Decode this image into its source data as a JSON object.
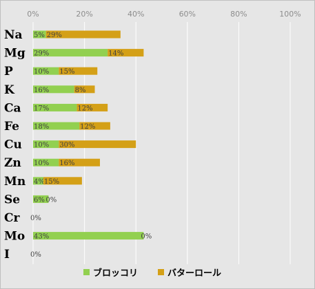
{
  "chart_data": {
    "type": "bar",
    "orientation": "horizontal",
    "stacked": true,
    "categories": [
      "Na",
      "Mg",
      "P",
      "K",
      "Ca",
      "Fe",
      "Cu",
      "Zn",
      "Mn",
      "Se",
      "Cr",
      "Mo",
      "I"
    ],
    "series": [
      {
        "name": "ブロッコリ",
        "color": "#92d050",
        "values": [
          5,
          29,
          10,
          16,
          17,
          18,
          10,
          10,
          4,
          6,
          0,
          43,
          0
        ],
        "labels": [
          "5%",
          "29%",
          "10%",
          "16%",
          "17%",
          "18%",
          "10%",
          "10%",
          "4%",
          "6%",
          "0%",
          "43%",
          "0%"
        ]
      },
      {
        "name": "バターロール",
        "color": "#d4a017",
        "values": [
          29,
          14,
          15,
          8,
          12,
          12,
          30,
          16,
          15,
          0,
          0,
          0,
          0
        ],
        "labels": [
          "29%",
          "14%",
          "15%",
          "8%",
          "12%",
          "12%",
          "30%",
          "16%",
          "15%",
          "0%",
          "",
          "0%",
          ""
        ]
      }
    ],
    "xlim": [
      0,
      100
    ],
    "x_ticks": [
      "0%",
      "20%",
      "40%",
      "60%",
      "80%",
      "100%"
    ],
    "x_tick_values": [
      0,
      20,
      40,
      60,
      80,
      100
    ],
    "x_axis_position": "top",
    "grid": true,
    "legend_position": "bottom",
    "background": "#e6e6e6"
  }
}
